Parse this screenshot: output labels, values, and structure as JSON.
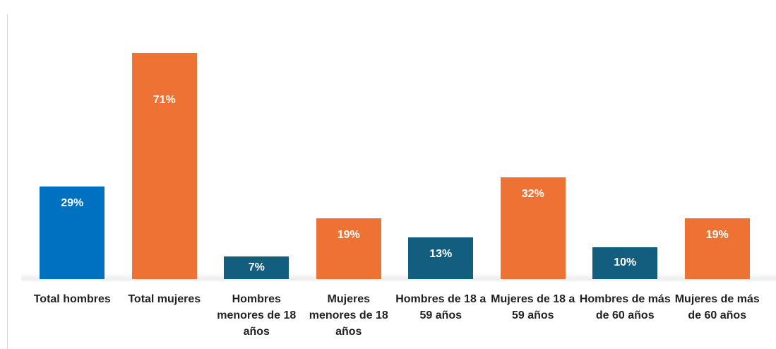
{
  "chart_data": {
    "type": "bar",
    "categories": [
      "Total hombres",
      "Total mujeres",
      "Hombres menores de 18 años",
      "Mujeres menores de 18 años",
      "Hombres de 18 a 59 años",
      "Mujeres de 18 a 59 años",
      "Hombres de más de 60 años",
      "Mujeres de más de 60 años"
    ],
    "values": [
      29,
      71,
      7,
      19,
      13,
      32,
      10,
      19
    ],
    "value_labels": [
      "29%",
      "71%",
      "7%",
      "19%",
      "13%",
      "32%",
      "10%",
      "19%"
    ],
    "colors": [
      "#0070c0",
      "#ed7234",
      "#135e7e",
      "#ed7234",
      "#135e7e",
      "#ed7234",
      "#135e7e",
      "#ed7234"
    ]
  }
}
